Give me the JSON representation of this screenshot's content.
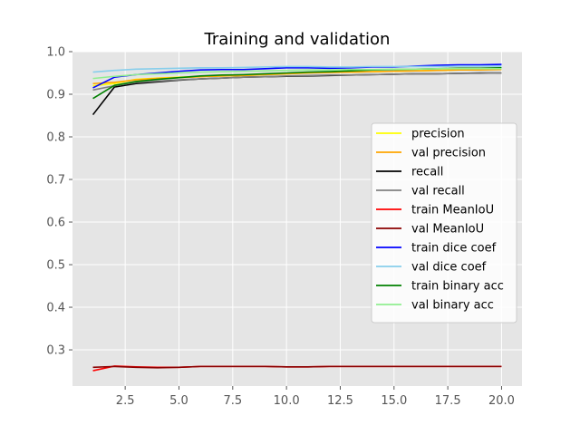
{
  "chart_data": {
    "type": "line",
    "title": "Training and validation",
    "xlabel": "",
    "ylabel": "",
    "xlim": [
      0.05,
      20.95
    ],
    "ylim": [
      0.215,
      1.0
    ],
    "xticks": [
      2.5,
      5.0,
      7.5,
      10.0,
      12.5,
      15.0,
      17.5,
      20.0
    ],
    "xtick_labels": [
      "2.5",
      "5.0",
      "7.5",
      "10.0",
      "12.5",
      "15.0",
      "17.5",
      "20.0"
    ],
    "yticks": [
      0.3,
      0.4,
      0.5,
      0.6,
      0.7,
      0.8,
      0.9,
      1.0
    ],
    "ytick_labels": [
      "0.3",
      "0.4",
      "0.5",
      "0.6",
      "0.7",
      "0.8",
      "0.9",
      "1.0"
    ],
    "grid": true,
    "legend_position": "center-right",
    "x": [
      1,
      2,
      3,
      4,
      5,
      6,
      7,
      8,
      9,
      10,
      11,
      12,
      13,
      14,
      15,
      16,
      17,
      18,
      19,
      20
    ],
    "series": [
      {
        "name": "precision",
        "color": "#ffff00",
        "values": [
          0.92,
          0.925,
          0.935,
          0.938,
          0.94,
          0.942,
          0.943,
          0.944,
          0.946,
          0.948,
          0.95,
          0.952,
          0.952,
          0.953,
          0.954,
          0.955,
          0.956,
          0.957,
          0.958,
          0.958
        ]
      },
      {
        "name": "val precision",
        "color": "#ffa500",
        "values": [
          0.925,
          0.928,
          0.934,
          0.937,
          0.939,
          0.941,
          0.943,
          0.944,
          0.946,
          0.948,
          0.95,
          0.951,
          0.952,
          0.953,
          0.954,
          0.955,
          0.956,
          0.957,
          0.957,
          0.958
        ]
      },
      {
        "name": "recall",
        "color": "#000000",
        "values": [
          0.852,
          0.917,
          0.925,
          0.929,
          0.933,
          0.936,
          0.938,
          0.94,
          0.941,
          0.942,
          0.943,
          0.944,
          0.945,
          0.946,
          0.947,
          0.948,
          0.948,
          0.949,
          0.95,
          0.95
        ]
      },
      {
        "name": "val recall",
        "color": "#808080",
        "values": [
          0.91,
          0.92,
          0.928,
          0.931,
          0.934,
          0.936,
          0.938,
          0.94,
          0.941,
          0.943,
          0.944,
          0.945,
          0.945,
          0.946,
          0.947,
          0.948,
          0.948,
          0.949,
          0.949,
          0.95
        ]
      },
      {
        "name": "train MeanIoU",
        "color": "#ff0000",
        "values": [
          0.251,
          0.262,
          0.26,
          0.259,
          0.259,
          0.261,
          0.261,
          0.261,
          0.261,
          0.26,
          0.26,
          0.261,
          0.261,
          0.261,
          0.261,
          0.261,
          0.261,
          0.261,
          0.261,
          0.261
        ]
      },
      {
        "name": "val MeanIoU",
        "color": "#8b0000",
        "values": [
          0.259,
          0.261,
          0.259,
          0.258,
          0.259,
          0.261,
          0.261,
          0.261,
          0.261,
          0.26,
          0.26,
          0.261,
          0.261,
          0.261,
          0.261,
          0.261,
          0.261,
          0.261,
          0.261,
          0.261
        ]
      },
      {
        "name": "train dice coef",
        "color": "#0000ff",
        "values": [
          0.915,
          0.94,
          0.946,
          0.95,
          0.954,
          0.957,
          0.958,
          0.958,
          0.96,
          0.962,
          0.962,
          0.961,
          0.962,
          0.964,
          0.964,
          0.966,
          0.968,
          0.969,
          0.969,
          0.97
        ]
      },
      {
        "name": "val dice coef",
        "color": "#87ceeb",
        "values": [
          0.952,
          0.956,
          0.959,
          0.96,
          0.961,
          0.962,
          0.962,
          0.963,
          0.964,
          0.965,
          0.965,
          0.964,
          0.964,
          0.965,
          0.965,
          0.965,
          0.965,
          0.966,
          0.966,
          0.966
        ]
      },
      {
        "name": "train binary acc",
        "color": "#008000",
        "values": [
          0.89,
          0.921,
          0.93,
          0.935,
          0.939,
          0.943,
          0.945,
          0.946,
          0.948,
          0.95,
          0.952,
          0.953,
          0.955,
          0.957,
          0.958,
          0.959,
          0.96,
          0.961,
          0.961,
          0.962
        ]
      },
      {
        "name": "val binary acc",
        "color": "#90ee90",
        "values": [
          0.937,
          0.942,
          0.946,
          0.948,
          0.95,
          0.952,
          0.953,
          0.954,
          0.955,
          0.956,
          0.957,
          0.957,
          0.958,
          0.958,
          0.959,
          0.959,
          0.96,
          0.96,
          0.96,
          0.96
        ]
      }
    ]
  }
}
